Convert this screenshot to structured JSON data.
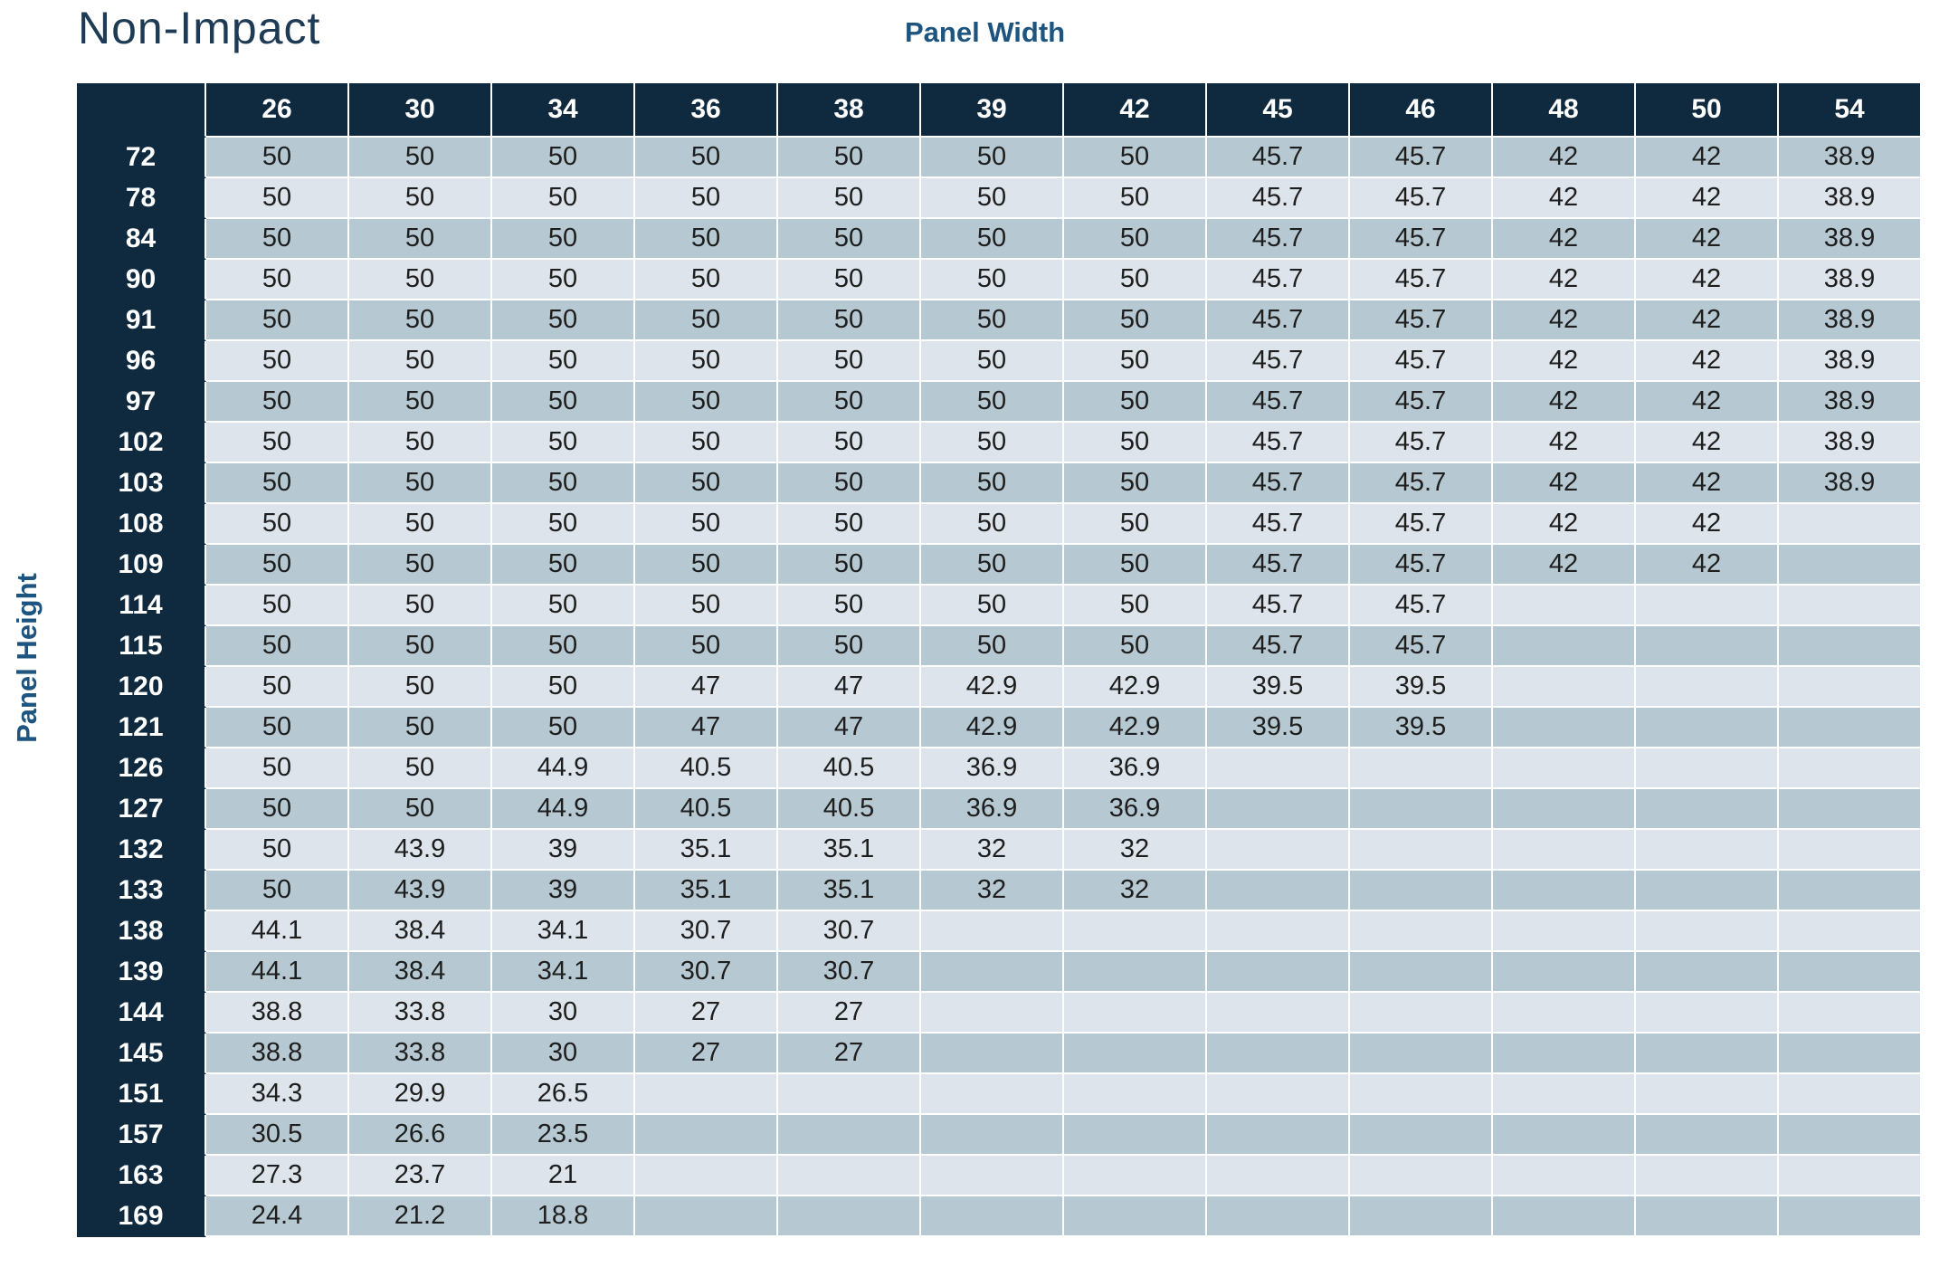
{
  "title": "Non-Impact",
  "labels": {
    "column_group": "Panel Width",
    "row_group": "Panel Height"
  },
  "table": {
    "columns": [
      "26",
      "30",
      "34",
      "36",
      "38",
      "39",
      "42",
      "45",
      "46",
      "48",
      "50",
      "54"
    ],
    "rows": [
      {
        "height": "72",
        "values": [
          "50",
          "50",
          "50",
          "50",
          "50",
          "50",
          "50",
          "45.7",
          "45.7",
          "42",
          "42",
          "38.9"
        ]
      },
      {
        "height": "78",
        "values": [
          "50",
          "50",
          "50",
          "50",
          "50",
          "50",
          "50",
          "45.7",
          "45.7",
          "42",
          "42",
          "38.9"
        ]
      },
      {
        "height": "84",
        "values": [
          "50",
          "50",
          "50",
          "50",
          "50",
          "50",
          "50",
          "45.7",
          "45.7",
          "42",
          "42",
          "38.9"
        ]
      },
      {
        "height": "90",
        "values": [
          "50",
          "50",
          "50",
          "50",
          "50",
          "50",
          "50",
          "45.7",
          "45.7",
          "42",
          "42",
          "38.9"
        ]
      },
      {
        "height": "91",
        "values": [
          "50",
          "50",
          "50",
          "50",
          "50",
          "50",
          "50",
          "45.7",
          "45.7",
          "42",
          "42",
          "38.9"
        ]
      },
      {
        "height": "96",
        "values": [
          "50",
          "50",
          "50",
          "50",
          "50",
          "50",
          "50",
          "45.7",
          "45.7",
          "42",
          "42",
          "38.9"
        ]
      },
      {
        "height": "97",
        "values": [
          "50",
          "50",
          "50",
          "50",
          "50",
          "50",
          "50",
          "45.7",
          "45.7",
          "42",
          "42",
          "38.9"
        ]
      },
      {
        "height": "102",
        "values": [
          "50",
          "50",
          "50",
          "50",
          "50",
          "50",
          "50",
          "45.7",
          "45.7",
          "42",
          "42",
          "38.9"
        ]
      },
      {
        "height": "103",
        "values": [
          "50",
          "50",
          "50",
          "50",
          "50",
          "50",
          "50",
          "45.7",
          "45.7",
          "42",
          "42",
          "38.9"
        ]
      },
      {
        "height": "108",
        "values": [
          "50",
          "50",
          "50",
          "50",
          "50",
          "50",
          "50",
          "45.7",
          "45.7",
          "42",
          "42",
          ""
        ]
      },
      {
        "height": "109",
        "values": [
          "50",
          "50",
          "50",
          "50",
          "50",
          "50",
          "50",
          "45.7",
          "45.7",
          "42",
          "42",
          ""
        ]
      },
      {
        "height": "114",
        "values": [
          "50",
          "50",
          "50",
          "50",
          "50",
          "50",
          "50",
          "45.7",
          "45.7",
          "",
          "",
          ""
        ]
      },
      {
        "height": "115",
        "values": [
          "50",
          "50",
          "50",
          "50",
          "50",
          "50",
          "50",
          "45.7",
          "45.7",
          "",
          "",
          ""
        ]
      },
      {
        "height": "120",
        "values": [
          "50",
          "50",
          "50",
          "47",
          "47",
          "42.9",
          "42.9",
          "39.5",
          "39.5",
          "",
          "",
          ""
        ]
      },
      {
        "height": "121",
        "values": [
          "50",
          "50",
          "50",
          "47",
          "47",
          "42.9",
          "42.9",
          "39.5",
          "39.5",
          "",
          "",
          ""
        ]
      },
      {
        "height": "126",
        "values": [
          "50",
          "50",
          "44.9",
          "40.5",
          "40.5",
          "36.9",
          "36.9",
          "",
          "",
          "",
          "",
          ""
        ]
      },
      {
        "height": "127",
        "values": [
          "50",
          "50",
          "44.9",
          "40.5",
          "40.5",
          "36.9",
          "36.9",
          "",
          "",
          "",
          "",
          ""
        ]
      },
      {
        "height": "132",
        "values": [
          "50",
          "43.9",
          "39",
          "35.1",
          "35.1",
          "32",
          "32",
          "",
          "",
          "",
          "",
          ""
        ]
      },
      {
        "height": "133",
        "values": [
          "50",
          "43.9",
          "39",
          "35.1",
          "35.1",
          "32",
          "32",
          "",
          "",
          "",
          "",
          ""
        ]
      },
      {
        "height": "138",
        "values": [
          "44.1",
          "38.4",
          "34.1",
          "30.7",
          "30.7",
          "",
          "",
          "",
          "",
          "",
          "",
          ""
        ]
      },
      {
        "height": "139",
        "values": [
          "44.1",
          "38.4",
          "34.1",
          "30.7",
          "30.7",
          "",
          "",
          "",
          "",
          "",
          "",
          ""
        ]
      },
      {
        "height": "144",
        "values": [
          "38.8",
          "33.8",
          "30",
          "27",
          "27",
          "",
          "",
          "",
          "",
          "",
          "",
          ""
        ]
      },
      {
        "height": "145",
        "values": [
          "38.8",
          "33.8",
          "30",
          "27",
          "27",
          "",
          "",
          "",
          "",
          "",
          "",
          ""
        ]
      },
      {
        "height": "151",
        "values": [
          "34.3",
          "29.9",
          "26.5",
          "",
          "",
          "",
          "",
          "",
          "",
          "",
          "",
          ""
        ]
      },
      {
        "height": "157",
        "values": [
          "30.5",
          "26.6",
          "23.5",
          "",
          "",
          "",
          "",
          "",
          "",
          "",
          "",
          ""
        ]
      },
      {
        "height": "163",
        "values": [
          "27.3",
          "23.7",
          "21",
          "",
          "",
          "",
          "",
          "",
          "",
          "",
          "",
          ""
        ]
      },
      {
        "height": "169",
        "values": [
          "24.4",
          "21.2",
          "18.8",
          "",
          "",
          "",
          "",
          "",
          "",
          "",
          "",
          ""
        ]
      }
    ]
  },
  "colors": {
    "header_navy": "#0f2a3f",
    "row_stripe_dark": "#b6c8d1",
    "row_stripe_light": "#dde4eb",
    "label_blue": "#1d5480",
    "title_blue": "#1d3b55",
    "cell_text": "#1e1e1e"
  }
}
